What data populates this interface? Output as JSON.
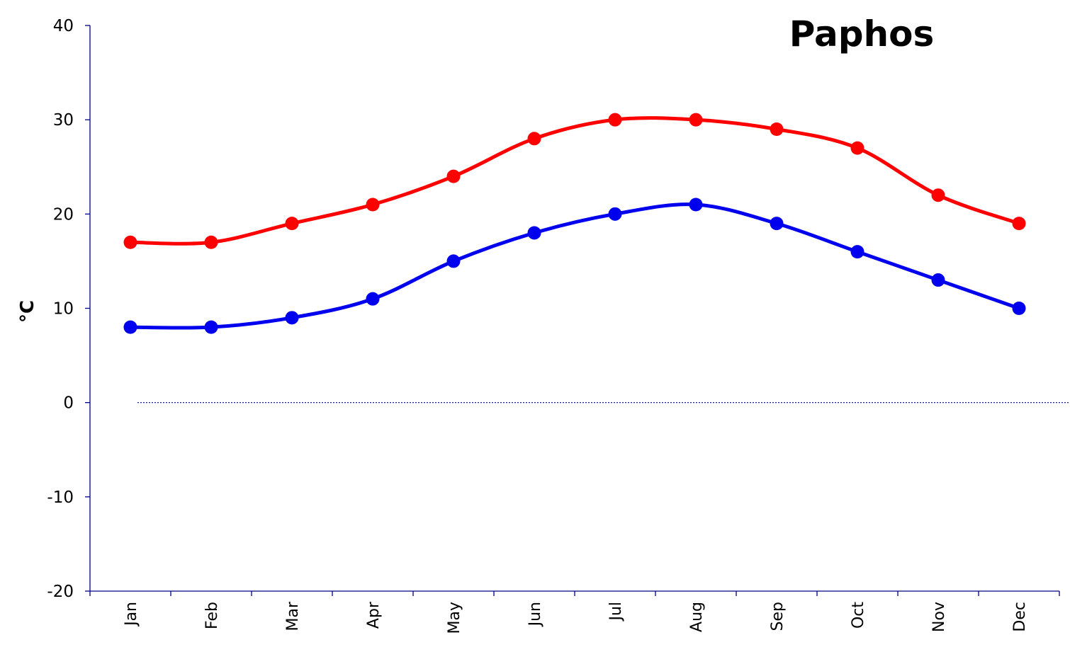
{
  "chart_data": {
    "type": "line",
    "title": "Paphos",
    "xlabel": "",
    "ylabel": "°C",
    "categories": [
      "Jan",
      "Feb",
      "Mar",
      "Apr",
      "May",
      "Jun",
      "Jul",
      "Aug",
      "Sep",
      "Oct",
      "Nov",
      "Dec"
    ],
    "ylim": [
      -20,
      40
    ],
    "yticks": [
      "40",
      "30",
      "20",
      "10",
      "0",
      "-10",
      "-20"
    ],
    "grid": false,
    "zero_line": "dotted",
    "series": [
      {
        "color": "#ff0000",
        "values": [
          17,
          17,
          19,
          21,
          24,
          28,
          30,
          30,
          29,
          27,
          22,
          19
        ]
      },
      {
        "color": "#0000ee",
        "values": [
          8,
          8,
          9,
          11,
          15,
          18,
          20,
          21,
          19,
          16,
          13,
          10
        ]
      }
    ]
  }
}
